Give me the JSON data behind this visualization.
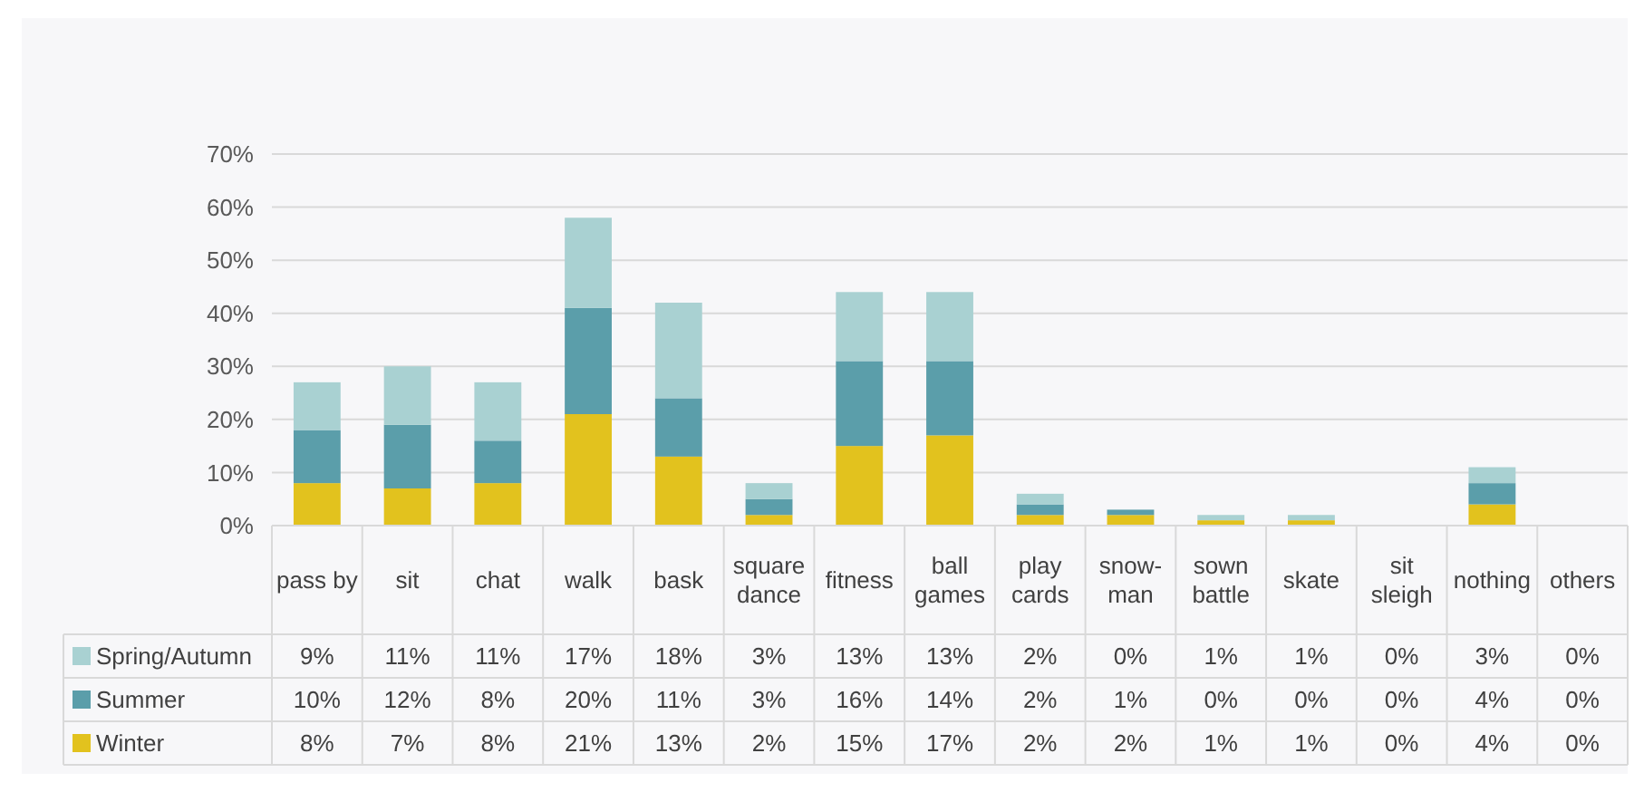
{
  "chart_data": {
    "type": "bar",
    "stacked": true,
    "categories": [
      "pass by",
      "sit",
      "chat",
      "walk",
      "bask",
      "square dance",
      "fitness",
      "ball games",
      "play cards",
      "snow-man",
      "sown battle",
      "skate",
      "sit sleigh",
      "nothing",
      "others"
    ],
    "series": [
      {
        "name": "Winter",
        "color": "#e2c21e",
        "values": [
          8,
          7,
          8,
          21,
          13,
          2,
          15,
          17,
          2,
          2,
          1,
          1,
          0,
          4,
          0
        ],
        "value_labels": [
          "8%",
          "7%",
          "8%",
          "21%",
          "13%",
          "2%",
          "15%",
          "17%",
          "2%",
          "2%",
          "1%",
          "1%",
          "0%",
          "4%",
          "0%"
        ]
      },
      {
        "name": "Summer",
        "color": "#5b9eaa",
        "values": [
          10,
          12,
          8,
          20,
          11,
          3,
          16,
          14,
          2,
          1,
          0,
          0,
          0,
          4,
          0
        ],
        "value_labels": [
          "10%",
          "12%",
          "8%",
          "20%",
          "11%",
          "3%",
          "16%",
          "14%",
          "2%",
          "1%",
          "0%",
          "0%",
          "0%",
          "4%",
          "0%"
        ]
      },
      {
        "name": "Spring/Autumn",
        "color": "#a9d1d2",
        "values": [
          9,
          11,
          11,
          17,
          18,
          3,
          13,
          13,
          2,
          0,
          1,
          1,
          0,
          3,
          0
        ],
        "value_labels": [
          "9%",
          "11%",
          "11%",
          "17%",
          "18%",
          "3%",
          "13%",
          "13%",
          "2%",
          "0%",
          "1%",
          "1%",
          "0%",
          "3%",
          "0%"
        ]
      }
    ],
    "ylim": [
      0,
      70
    ],
    "yticks": [
      {
        "value": 0,
        "label": "0%"
      },
      {
        "value": 10,
        "label": "10%"
      },
      {
        "value": 20,
        "label": "20%"
      },
      {
        "value": 30,
        "label": "30%"
      },
      {
        "value": 40,
        "label": "40%"
      },
      {
        "value": 50,
        "label": "50%"
      },
      {
        "value": 60,
        "label": "60%"
      },
      {
        "value": 70,
        "label": "70%"
      }
    ],
    "grid": "y",
    "legend": "bottom left"
  }
}
